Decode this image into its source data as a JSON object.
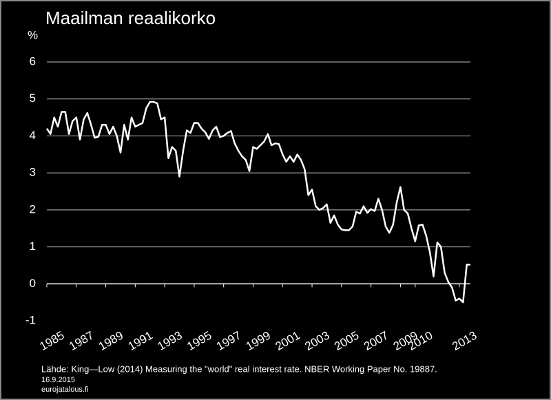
{
  "chart_data": {
    "type": "line",
    "title": "Maailman reaalikorko",
    "y_label": "%",
    "source": "Lähde: King—Low (2014) Measuring the \"world\" real interest rate. NBER Working Paper No. 19887.",
    "date": "16.9.2015",
    "site": "eurojatalous.fi",
    "xlim": [
      1985,
      2013.75
    ],
    "xticks": [
      1985,
      1987,
      1989,
      1991,
      1993,
      1995,
      1997,
      1999,
      2001,
      2003,
      2005,
      2007,
      2009,
      2010,
      2013
    ],
    "ylim": [
      -1,
      6
    ],
    "yticks": [
      -1,
      0,
      1,
      2,
      3,
      4,
      5,
      6
    ],
    "grid": true,
    "series": [
      {
        "color": "#ffffff",
        "x": [
          1985,
          1985.25,
          1985.5,
          1985.75,
          1986,
          1986.25,
          1986.5,
          1986.75,
          1987,
          1987.25,
          1987.5,
          1987.75,
          1988,
          1988.25,
          1988.5,
          1988.75,
          1989,
          1989.25,
          1989.5,
          1989.75,
          1990,
          1990.25,
          1990.5,
          1990.75,
          1991,
          1991.25,
          1991.5,
          1991.75,
          1992,
          1992.25,
          1992.5,
          1992.75,
          1993,
          1993.25,
          1993.5,
          1993.75,
          1994,
          1994.25,
          1994.5,
          1994.75,
          1995,
          1995.25,
          1995.5,
          1995.75,
          1996,
          1996.25,
          1996.5,
          1996.75,
          1997,
          1997.25,
          1997.5,
          1997.75,
          1998,
          1998.25,
          1998.5,
          1998.75,
          1999,
          1999.25,
          1999.5,
          1999.75,
          2000,
          2000.25,
          2000.5,
          2000.75,
          2001,
          2001.25,
          2001.5,
          2001.75,
          2002,
          2002.25,
          2002.5,
          2002.75,
          2003,
          2003.25,
          2003.5,
          2003.75,
          2004,
          2004.25,
          2004.5,
          2004.75,
          2005,
          2005.25,
          2005.5,
          2005.75,
          2006,
          2006.25,
          2006.5,
          2006.75,
          2007,
          2007.25,
          2007.5,
          2007.75,
          2008,
          2008.25,
          2008.5,
          2008.75,
          2009,
          2009.25,
          2009.5,
          2009.75,
          2010,
          2010.25,
          2010.5,
          2010.75,
          2011,
          2011.25,
          2011.5,
          2011.75,
          2012,
          2012.25,
          2012.5,
          2012.75,
          2013,
          2013.25,
          2013.5,
          2013.75
        ],
        "values": [
          4.2,
          4.05,
          4.5,
          4.25,
          4.65,
          4.65,
          4.05,
          4.4,
          4.5,
          3.9,
          4.45,
          4.62,
          4.3,
          3.95,
          3.98,
          4.3,
          4.3,
          4.05,
          4.25,
          4.0,
          3.55,
          4.3,
          3.9,
          4.5,
          4.25,
          4.3,
          4.35,
          4.75,
          4.92,
          4.92,
          4.88,
          4.45,
          4.5,
          3.4,
          3.7,
          3.6,
          2.9,
          3.6,
          4.15,
          4.08,
          4.35,
          4.35,
          4.2,
          4.1,
          3.92,
          4.15,
          4.25,
          3.97,
          4.0,
          4.08,
          4.13,
          3.8,
          3.6,
          3.45,
          3.35,
          3.05,
          3.7,
          3.65,
          3.75,
          3.85,
          4.05,
          3.75,
          3.8,
          3.78,
          3.5,
          3.3,
          3.45,
          3.3,
          3.5,
          3.35,
          3.1,
          2.4,
          2.55,
          2.1,
          2.0,
          2.05,
          2.15,
          1.65,
          1.85,
          1.6,
          1.47,
          1.45,
          1.45,
          1.55,
          1.95,
          1.9,
          2.1,
          1.92,
          2.02,
          1.97,
          2.3,
          2.0,
          1.55,
          1.38,
          1.6,
          2.2,
          2.62,
          2.0,
          1.9,
          1.5,
          1.15,
          1.58,
          1.6,
          1.3,
          0.85,
          0.2,
          1.12,
          1.0,
          0.3,
          0.05,
          -0.1,
          -0.45,
          -0.4,
          -0.5,
          0.52,
          0.52
        ]
      }
    ]
  }
}
